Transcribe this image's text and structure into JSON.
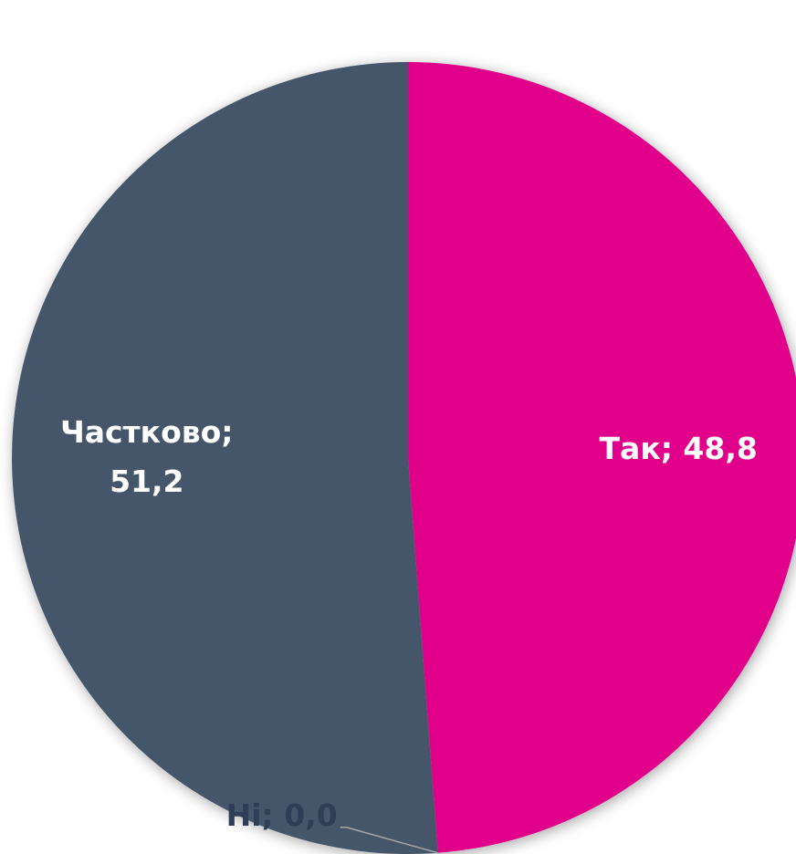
{
  "chart_data": {
    "type": "pie",
    "categories": [
      "Так",
      "Ні",
      "Частково"
    ],
    "values": [
      48.8,
      0.0,
      51.2
    ],
    "data_labels": [
      "Так; 48,8",
      "Ні; 0,0",
      "Частково; 51,2"
    ],
    "colors": {
      "Так": "#E0038A",
      "Ні": "#2F3E56",
      "Частково": "#44546A"
    },
    "label_colors": {
      "inside": "#FFFFFF",
      "outside": "#2F3E56",
      "leader_line": "#A6A6A6"
    },
    "start": "12 o'clock",
    "direction": "clockwise",
    "legend": "none"
  }
}
